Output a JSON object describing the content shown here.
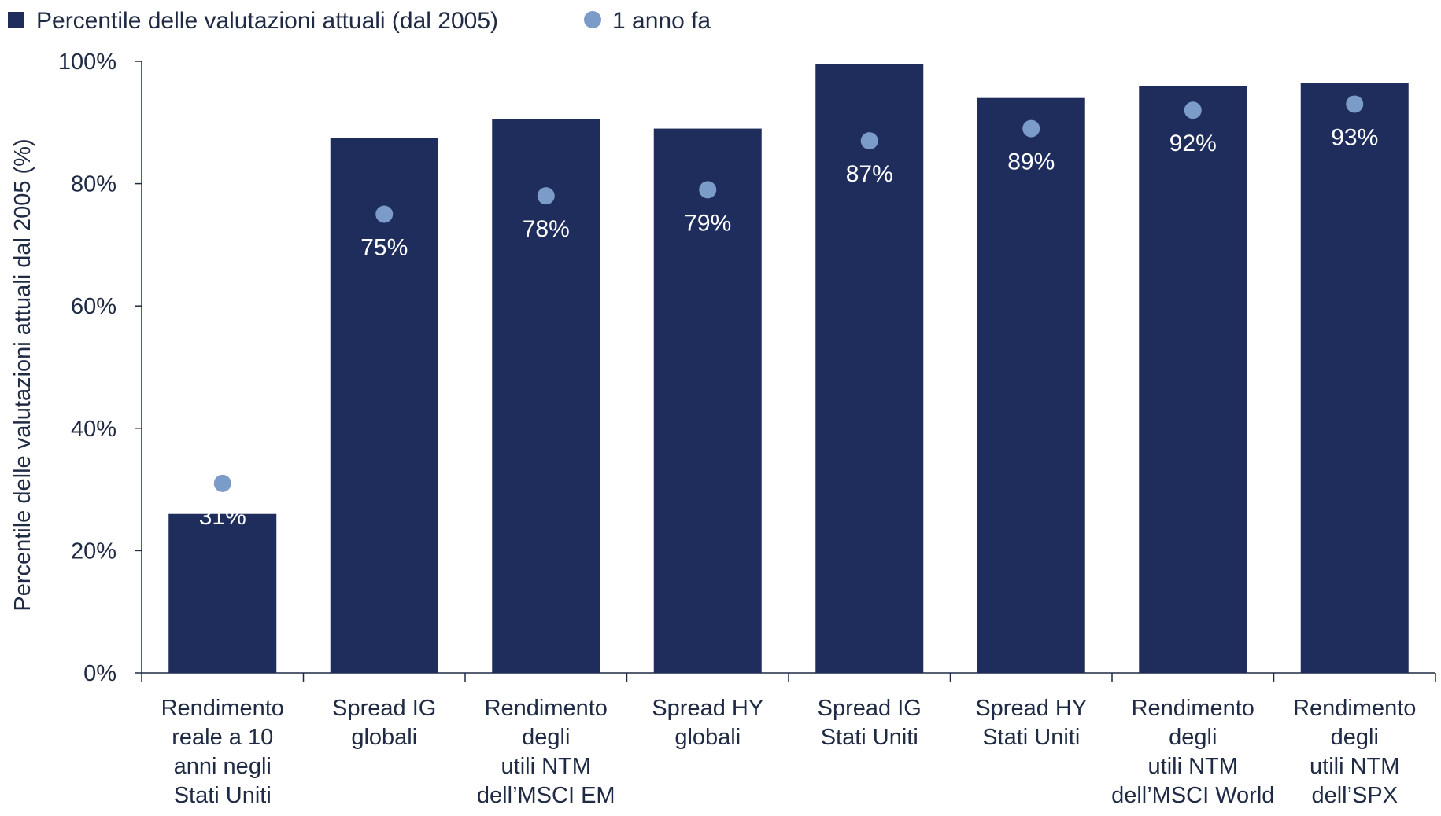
{
  "chart_data": {
    "type": "bar",
    "title": "",
    "xlabel": "",
    "ylabel": "Percentile delle valutazioni attuali dal 2005 (%)",
    "ylim": [
      0,
      100
    ],
    "yticks": [
      0,
      20,
      40,
      60,
      80,
      100
    ],
    "ytick_labels": [
      "0%",
      "20%",
      "40%",
      "60%",
      "80%",
      "100%"
    ],
    "grid": false,
    "legend_position": "top-left",
    "categories": [
      [
        "Rendimento",
        "reale a 10",
        "anni negli",
        "Stati Uniti"
      ],
      [
        "Spread IG",
        "globali"
      ],
      [
        "Rendimento",
        "degli",
        "utili NTM",
        "dell’MSCI EM"
      ],
      [
        "Spread HY",
        "globali"
      ],
      [
        "Spread IG",
        "Stati Uniti"
      ],
      [
        "Spread HY",
        "Stati Uniti"
      ],
      [
        "Rendimento",
        "degli",
        "utili NTM",
        "dell’MSCI World"
      ],
      [
        "Rendimento",
        "degli",
        "utili NTM",
        "dell’SPX"
      ]
    ],
    "series": [
      {
        "name": "Percentile delle valutazioni attuali (dal 2005)",
        "kind": "bar",
        "color": "#1f2d5c",
        "values": [
          26,
          87.5,
          90.5,
          89,
          99.5,
          94,
          96,
          96.5
        ]
      },
      {
        "name": "1 anno fa",
        "kind": "marker",
        "color": "#7b9cc9",
        "values": [
          31,
          75,
          78,
          79,
          87,
          89,
          92,
          93
        ],
        "labels": [
          "31%",
          "75%",
          "78%",
          "79%",
          "87%",
          "89%",
          "92%",
          "93%"
        ]
      }
    ]
  }
}
